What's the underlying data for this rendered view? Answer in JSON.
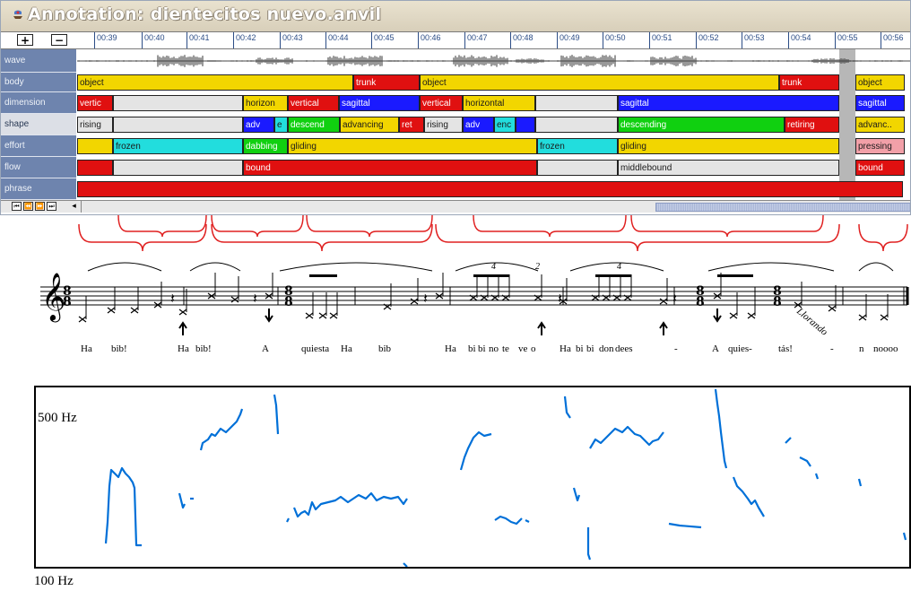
{
  "window": {
    "title": "Annotation: dientecitos nuevo.anvil",
    "zoom_in": "+",
    "zoom_out": "−"
  },
  "timeline": {
    "ticks": [
      "00:39",
      "00:40",
      "00:41",
      "00:42",
      "00:43",
      "00:44",
      "00:45",
      "00:46",
      "00:47",
      "00:48",
      "00:49",
      "00:50",
      "00:51",
      "00:52",
      "00:53",
      "00:54",
      "00:55",
      "00:56"
    ]
  },
  "tracks": [
    {
      "label": "wave",
      "segments": []
    },
    {
      "label": "body",
      "segments": [
        {
          "t": "object",
          "c": "#f2d600"
        },
        {
          "t": "trunk",
          "c": "#e01010"
        },
        {
          "t": "object",
          "c": "#f2d600"
        },
        {
          "t": "trunk",
          "c": "#e01010"
        },
        {
          "t": "object",
          "c": "#f2d600"
        }
      ]
    },
    {
      "label": "dimension",
      "segments": [
        {
          "t": "vertic",
          "c": "#e01010"
        },
        {
          "t": "",
          "c": "#e4e4e4"
        },
        {
          "t": "horizon",
          "c": "#f2d600"
        },
        {
          "t": "vertical",
          "c": "#e01010"
        },
        {
          "t": "sagittal",
          "c": "#1a1aff"
        },
        {
          "t": "vertical",
          "c": "#e01010"
        },
        {
          "t": "horizontal",
          "c": "#f2d600"
        },
        {
          "t": "",
          "c": "#e4e4e4"
        },
        {
          "t": "sagittal",
          "c": "#1a1aff"
        },
        {
          "t": "sagittal",
          "c": "#1a1aff"
        }
      ]
    },
    {
      "label": "shape",
      "segments": [
        {
          "t": "rising",
          "c": "#e4e4e4"
        },
        {
          "t": "",
          "c": "#e4e4e4"
        },
        {
          "t": "adv",
          "c": "#1a1aff"
        },
        {
          "t": "e",
          "c": "#22dddd"
        },
        {
          "t": "descend",
          "c": "#10d010"
        },
        {
          "t": "advancing",
          "c": "#f2d600"
        },
        {
          "t": "ret",
          "c": "#e01010"
        },
        {
          "t": "rising",
          "c": "#e4e4e4"
        },
        {
          "t": "adv",
          "c": "#1a1aff"
        },
        {
          "t": "enc",
          "c": "#22dddd"
        },
        {
          "t": "",
          "c": "#1a1aff"
        },
        {
          "t": "",
          "c": "#e4e4e4"
        },
        {
          "t": "descending",
          "c": "#10d010"
        },
        {
          "t": "retiring",
          "c": "#e01010"
        },
        {
          "t": "advanc..",
          "c": "#f2d600"
        }
      ]
    },
    {
      "label": "effort",
      "segments": [
        {
          "t": "",
          "c": "#f2d600"
        },
        {
          "t": "frozen",
          "c": "#22dddd"
        },
        {
          "t": "dabbing",
          "c": "#10d010"
        },
        {
          "t": "gliding",
          "c": "#f2d600"
        },
        {
          "t": "frozen",
          "c": "#22dddd"
        },
        {
          "t": "gliding",
          "c": "#f2d600"
        },
        {
          "t": "pressing",
          "c": "#f2a0a8"
        }
      ]
    },
    {
      "label": "flow",
      "segments": [
        {
          "t": "",
          "c": "#e01010"
        },
        {
          "t": "",
          "c": "#e4e4e4"
        },
        {
          "t": "bound",
          "c": "#e01010"
        },
        {
          "t": "",
          "c": "#e4e4e4"
        },
        {
          "t": "middlebound",
          "c": "#e4e4e4"
        },
        {
          "t": "bound",
          "c": "#e01010"
        }
      ]
    },
    {
      "label": "phrase",
      "segments": [
        {
          "t": "",
          "c": "#e01010"
        }
      ]
    }
  ],
  "notation": {
    "lyrics": [
      "Ha",
      "bib!",
      "Ha",
      "bib!",
      "A",
      "quiesta",
      "Ha",
      "bib",
      "Ha",
      "bi",
      "bi",
      "no",
      "te",
      "ve",
      "o",
      "Ha",
      "bi",
      "bi",
      "don",
      "dees",
      "-",
      "A",
      "qui",
      "es-",
      "tás!",
      "-",
      "n",
      "noooo"
    ],
    "tuplets": [
      "4",
      "2",
      "4"
    ],
    "timesig": [
      "8",
      "8",
      "8",
      "8"
    ],
    "annotation": "Llorando"
  },
  "pitch": {
    "high_label": "500 Hz",
    "low_label": "100 Hz",
    "color": "#0070d8"
  }
}
